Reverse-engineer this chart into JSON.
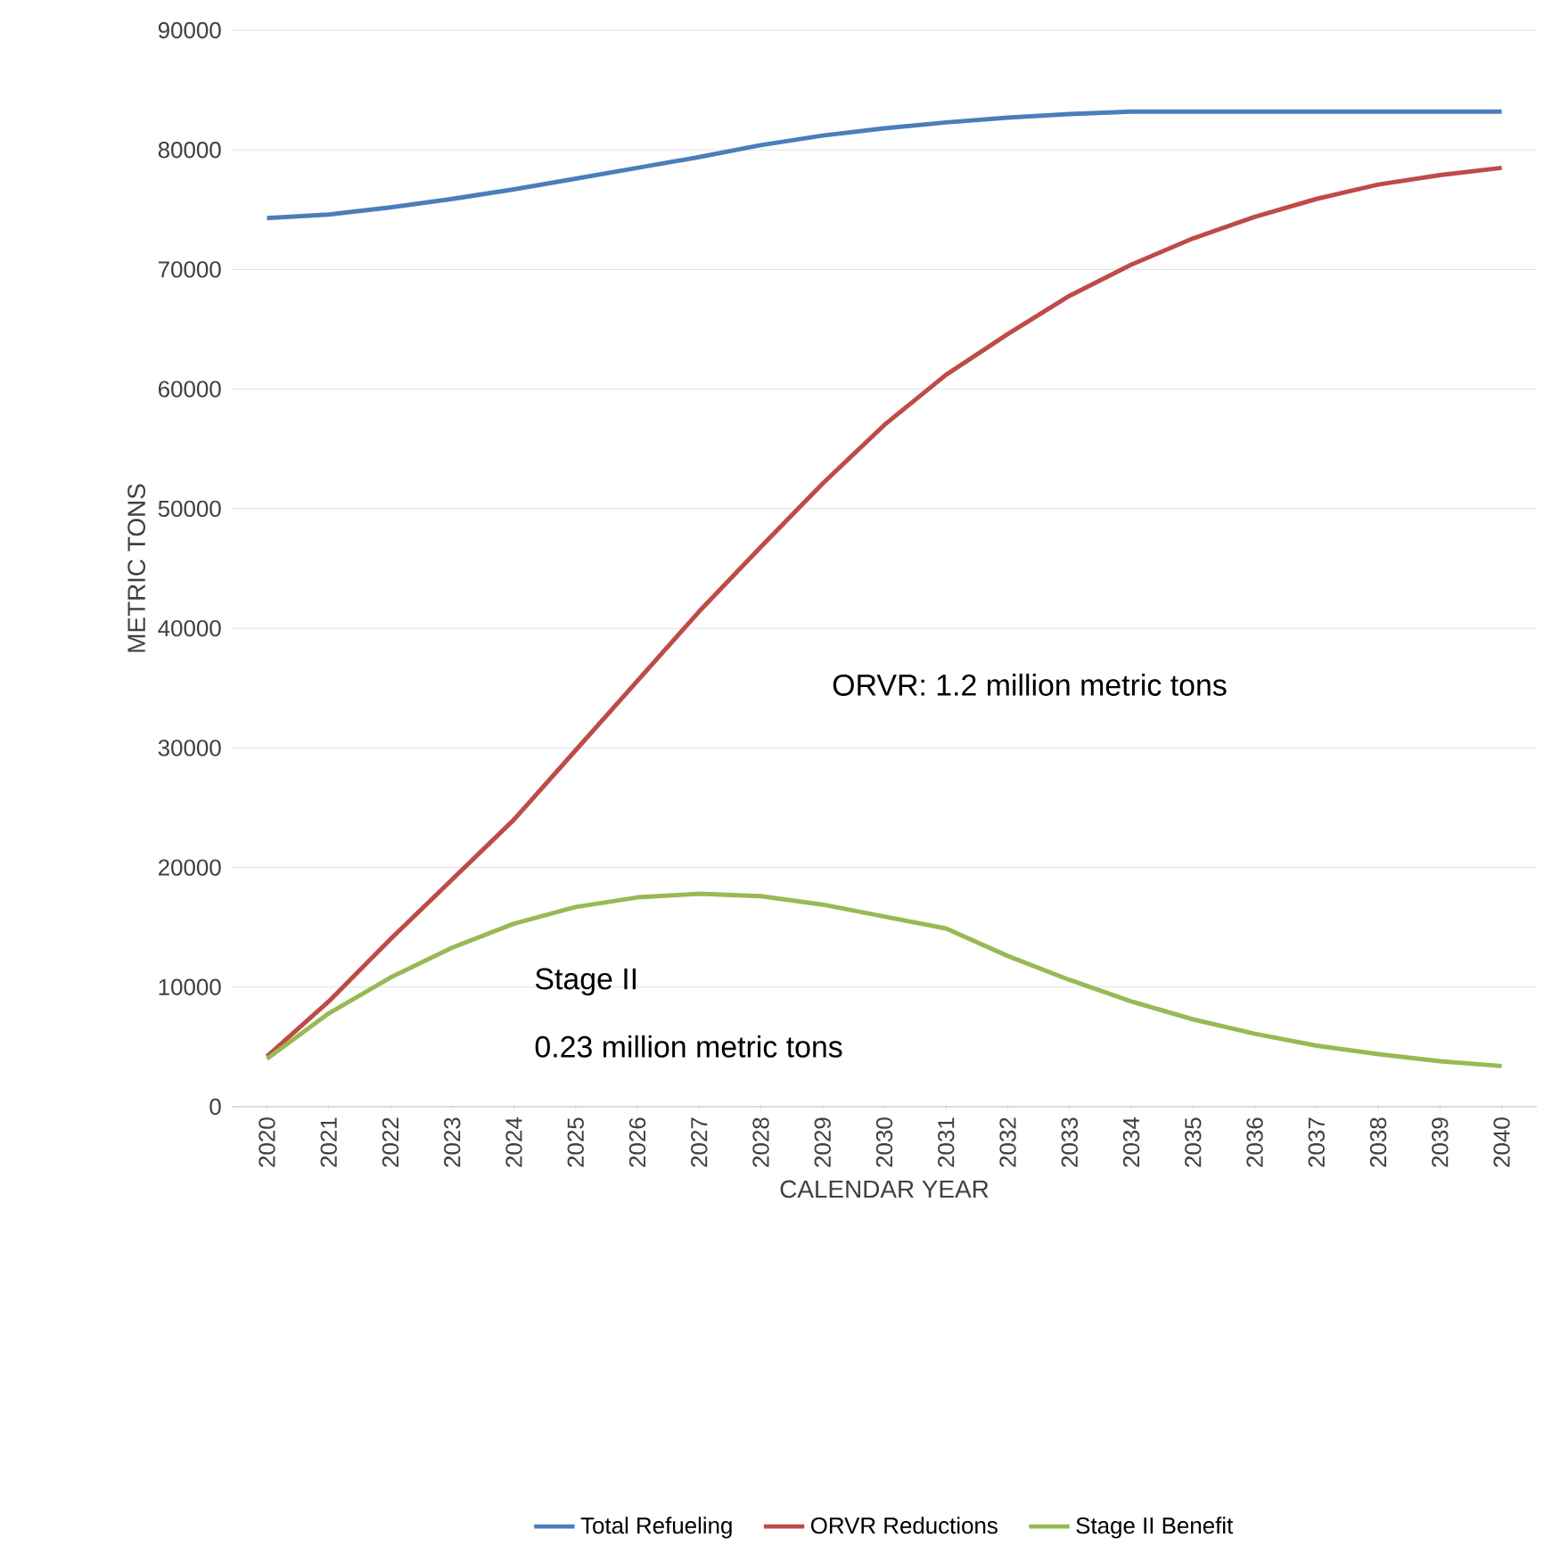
{
  "chart_data": {
    "type": "line",
    "xlabel": "CALENDAR YEAR",
    "ylabel": "METRIC TONS",
    "categories": [
      "2020",
      "2021",
      "2022",
      "2023",
      "2024",
      "2025",
      "2026",
      "2027",
      "2028",
      "2029",
      "2030",
      "2031",
      "2032",
      "2033",
      "2034",
      "2035",
      "2036",
      "2037",
      "2038",
      "2039",
      "2040"
    ],
    "series": [
      {
        "name": "Total Refueling",
        "color": "#4a7ebb",
        "values": [
          74300,
          74600,
          75200,
          75900,
          76700,
          77600,
          78500,
          79400,
          80400,
          81200,
          81800,
          82300,
          82700,
          83000,
          83200,
          83200,
          83200,
          83200,
          83200,
          83200,
          83200
        ]
      },
      {
        "name": "ORVR Reductions",
        "color": "#be4b48",
        "values": [
          4200,
          8800,
          14000,
          19000,
          24000,
          29800,
          35600,
          41400,
          46800,
          52100,
          57000,
          61200,
          64600,
          67800,
          70400,
          72600,
          74400,
          75900,
          77100,
          77900,
          78500
        ]
      },
      {
        "name": "Stage II Benefit",
        "color": "#98b954",
        "values": [
          4000,
          7800,
          10800,
          13300,
          15300,
          16700,
          17500,
          17800,
          17600,
          16900,
          15900,
          14900,
          12600,
          10600,
          8800,
          7300,
          6100,
          5100,
          4400,
          3800,
          3400
        ]
      }
    ],
    "ylim": [
      0,
      90000
    ],
    "yticks": [
      0,
      10000,
      20000,
      30000,
      40000,
      50000,
      60000,
      70000,
      80000,
      90000
    ],
    "grid": "y",
    "legend": "bottom",
    "annotations": [
      "ORVR: 1.2 million metric tons",
      "Stage II",
      "0.23 million metric tons"
    ]
  }
}
